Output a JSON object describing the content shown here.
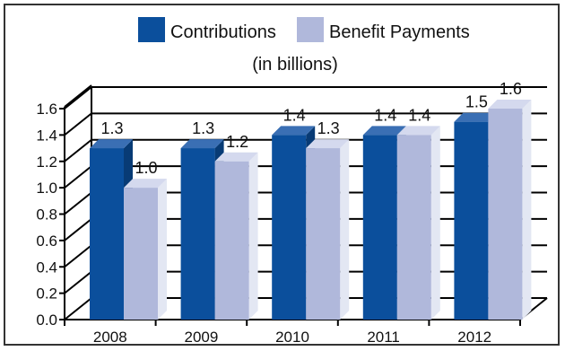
{
  "chart_data": {
    "type": "bar",
    "title": "",
    "subtitle": "(in billions)",
    "categories": [
      "2008",
      "2009",
      "2010",
      "2011",
      "2012"
    ],
    "series": [
      {
        "name": "Contributions",
        "values": [
          1.3,
          1.3,
          1.4,
          1.4,
          1.5
        ],
        "color": "#0b4f9c"
      },
      {
        "name": "Benefit Payments",
        "values": [
          1.0,
          1.2,
          1.3,
          1.4,
          1.6
        ],
        "color": "#b0b8db"
      }
    ],
    "data_labels": [
      [
        "1.3",
        "1.3",
        "1.4",
        "1.4",
        "1.5"
      ],
      [
        "1.0",
        "1.2",
        "1.3",
        "1.4",
        "1.6"
      ]
    ],
    "ylim": [
      0.0,
      1.6
    ],
    "yticks": [
      "0.0",
      "0.2",
      "0.4",
      "0.6",
      "0.8",
      "1.0",
      "1.2",
      "1.4",
      "1.6"
    ],
    "grid": true,
    "legend_position": "top",
    "style": "3d-bar"
  }
}
